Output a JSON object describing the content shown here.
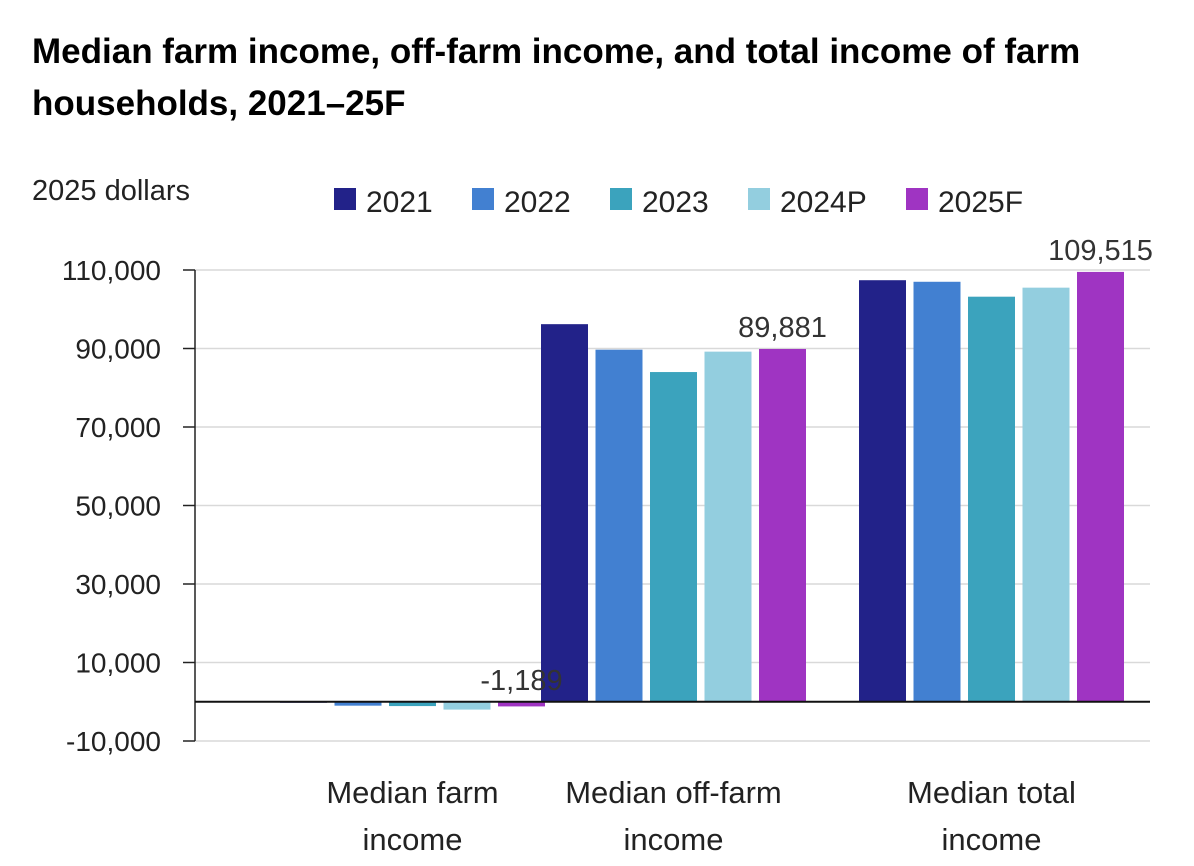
{
  "chart_data": {
    "type": "bar",
    "title": "Median farm income, off-farm income, and total income of farm households, 2021–25F",
    "ylabel": "2025 dollars",
    "xlabel": "",
    "ylim": [
      -10000,
      110000
    ],
    "yticks": [
      -10000,
      10000,
      30000,
      50000,
      70000,
      90000,
      110000
    ],
    "ytick_labels": [
      "-10,000",
      "10,000",
      "30,000",
      "50,000",
      "70,000",
      "90,000",
      "110,000"
    ],
    "grid": true,
    "legend_position": "top",
    "categories": [
      [
        "Median farm",
        "income"
      ],
      [
        "Median off-farm",
        "income"
      ],
      [
        "Median total",
        "income"
      ]
    ],
    "series": [
      {
        "name": "2021",
        "color": "#222289",
        "values": [
          -100,
          96200,
          107400
        ]
      },
      {
        "name": "2022",
        "color": "#4280d1",
        "values": [
          -1000,
          89700,
          107000
        ]
      },
      {
        "name": "2023",
        "color": "#3ba3bd",
        "values": [
          -1100,
          84000,
          103200
        ]
      },
      {
        "name": "2024P",
        "color": "#93cedf",
        "values": [
          -2000,
          89200,
          105500
        ]
      },
      {
        "name": "2025F",
        "color": "#9f34c2",
        "values": [
          -1189,
          89881,
          109515
        ]
      }
    ],
    "annotations": [
      {
        "series": "2025F",
        "category_index": 0,
        "text": "-1,189"
      },
      {
        "series": "2025F",
        "category_index": 1,
        "text": "89,881"
      },
      {
        "series": "2025F",
        "category_index": 2,
        "text": "109,515"
      }
    ]
  }
}
